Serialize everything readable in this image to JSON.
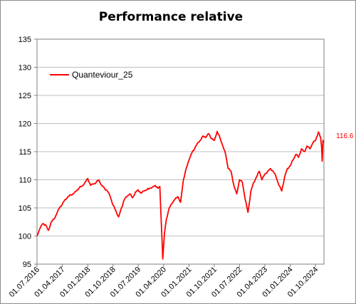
{
  "chart_data": {
    "type": "line",
    "title": "Performance relative",
    "xlabel": "",
    "ylabel": "",
    "ylim": [
      95,
      135
    ],
    "yticks": [
      "95",
      "100",
      "105",
      "110",
      "115",
      "120",
      "125",
      "130",
      "135"
    ],
    "xlim": [
      "2016-07-01",
      "2024-12-31"
    ],
    "xticks": [
      "01.07.2016",
      "01.04.2017",
      "01.01.2018",
      "01.10.2018",
      "01.07.2019",
      "01.04.2020",
      "01.01.2021",
      "01.10.2021",
      "01.07.2022",
      "01.04.2023",
      "01.01.2024",
      "01.10.2024"
    ],
    "grid": "horizontal",
    "legend_position": "top-left",
    "end_label": "116.6",
    "series": [
      {
        "name": "Quanteviour_25",
        "color": "#ff0000",
        "points": [
          [
            "2016-07-01",
            100.0
          ],
          [
            "2016-08-01",
            101.3
          ],
          [
            "2016-09-01",
            102.2
          ],
          [
            "2016-10-01",
            102.0
          ],
          [
            "2016-11-01",
            101.0
          ],
          [
            "2016-12-01",
            102.5
          ],
          [
            "2017-01-01",
            103.0
          ],
          [
            "2017-02-01",
            104.0
          ],
          [
            "2017-03-01",
            105.0
          ],
          [
            "2017-04-01",
            105.7
          ],
          [
            "2017-05-01",
            106.5
          ],
          [
            "2017-06-01",
            107.0
          ],
          [
            "2017-07-01",
            107.3
          ],
          [
            "2017-08-01",
            107.5
          ],
          [
            "2017-09-01",
            108.0
          ],
          [
            "2017-10-01",
            108.6
          ],
          [
            "2017-11-01",
            108.9
          ],
          [
            "2017-12-01",
            109.5
          ],
          [
            "2018-01-01",
            110.2
          ],
          [
            "2018-02-01",
            109.0
          ],
          [
            "2018-03-01",
            109.2
          ],
          [
            "2018-04-01",
            109.5
          ],
          [
            "2018-05-01",
            110.0
          ],
          [
            "2018-06-01",
            109.0
          ],
          [
            "2018-07-01",
            108.5
          ],
          [
            "2018-08-01",
            108.0
          ],
          [
            "2018-09-01",
            107.0
          ],
          [
            "2018-10-01",
            105.5
          ],
          [
            "2018-11-01",
            104.5
          ],
          [
            "2018-12-01",
            103.4
          ],
          [
            "2019-01-01",
            105.0
          ],
          [
            "2019-02-01",
            106.5
          ],
          [
            "2019-03-01",
            107.0
          ],
          [
            "2019-04-01",
            107.5
          ],
          [
            "2019-05-01",
            106.8
          ],
          [
            "2019-06-01",
            107.8
          ],
          [
            "2019-07-01",
            108.2
          ],
          [
            "2019-08-01",
            107.6
          ],
          [
            "2019-09-01",
            108.0
          ],
          [
            "2019-10-01",
            108.2
          ],
          [
            "2019-11-01",
            108.5
          ],
          [
            "2019-12-01",
            108.7
          ],
          [
            "2020-01-01",
            109.0
          ],
          [
            "2020-02-01",
            108.5
          ],
          [
            "2020-02-20",
            108.8
          ],
          [
            "2020-03-10",
            101.0
          ],
          [
            "2020-03-23",
            95.9
          ],
          [
            "2020-04-10",
            100.5
          ],
          [
            "2020-05-01",
            103.0
          ],
          [
            "2020-06-01",
            105.0
          ],
          [
            "2020-07-01",
            105.8
          ],
          [
            "2020-08-01",
            106.5
          ],
          [
            "2020-09-01",
            107.0
          ],
          [
            "2020-10-01",
            106.0
          ],
          [
            "2020-11-01",
            110.0
          ],
          [
            "2020-12-01",
            112.0
          ],
          [
            "2021-01-01",
            113.5
          ],
          [
            "2021-02-01",
            114.8
          ],
          [
            "2021-03-01",
            115.5
          ],
          [
            "2021-04-01",
            116.5
          ],
          [
            "2021-05-01",
            117.0
          ],
          [
            "2021-06-01",
            117.8
          ],
          [
            "2021-07-01",
            117.5
          ],
          [
            "2021-08-01",
            118.2
          ],
          [
            "2021-09-01",
            117.3
          ],
          [
            "2021-10-01",
            117.0
          ],
          [
            "2021-11-01",
            118.6
          ],
          [
            "2021-12-01",
            117.5
          ],
          [
            "2022-01-01",
            116.0
          ],
          [
            "2022-02-01",
            114.5
          ],
          [
            "2022-03-01",
            112.0
          ],
          [
            "2022-04-01",
            111.5
          ],
          [
            "2022-05-01",
            109.0
          ],
          [
            "2022-06-01",
            107.5
          ],
          [
            "2022-07-01",
            110.0
          ],
          [
            "2022-08-01",
            109.5
          ],
          [
            "2022-09-01",
            106.5
          ],
          [
            "2022-10-01",
            104.2
          ],
          [
            "2022-11-01",
            108.0
          ],
          [
            "2022-12-01",
            109.5
          ],
          [
            "2023-01-01",
            110.5
          ],
          [
            "2023-02-01",
            111.5
          ],
          [
            "2023-03-01",
            110.0
          ],
          [
            "2023-04-01",
            111.0
          ],
          [
            "2023-05-01",
            111.5
          ],
          [
            "2023-06-01",
            112.0
          ],
          [
            "2023-07-01",
            111.5
          ],
          [
            "2023-08-01",
            110.5
          ],
          [
            "2023-09-01",
            109.0
          ],
          [
            "2023-10-01",
            108.0
          ],
          [
            "2023-11-01",
            110.5
          ],
          [
            "2023-12-01",
            112.0
          ],
          [
            "2024-01-01",
            112.5
          ],
          [
            "2024-02-01",
            113.5
          ],
          [
            "2024-03-01",
            114.5
          ],
          [
            "2024-04-01",
            114.0
          ],
          [
            "2024-05-01",
            115.5
          ],
          [
            "2024-06-01",
            115.0
          ],
          [
            "2024-07-01",
            116.0
          ],
          [
            "2024-08-01",
            115.5
          ],
          [
            "2024-09-01",
            116.5
          ],
          [
            "2024-10-01",
            117.0
          ],
          [
            "2024-11-01",
            118.5
          ],
          [
            "2024-11-25",
            117.5
          ],
          [
            "2024-12-05",
            116.0
          ],
          [
            "2024-12-12",
            113.3
          ],
          [
            "2024-12-20",
            117.0
          ],
          [
            "2024-12-27",
            116.6
          ]
        ]
      }
    ]
  }
}
